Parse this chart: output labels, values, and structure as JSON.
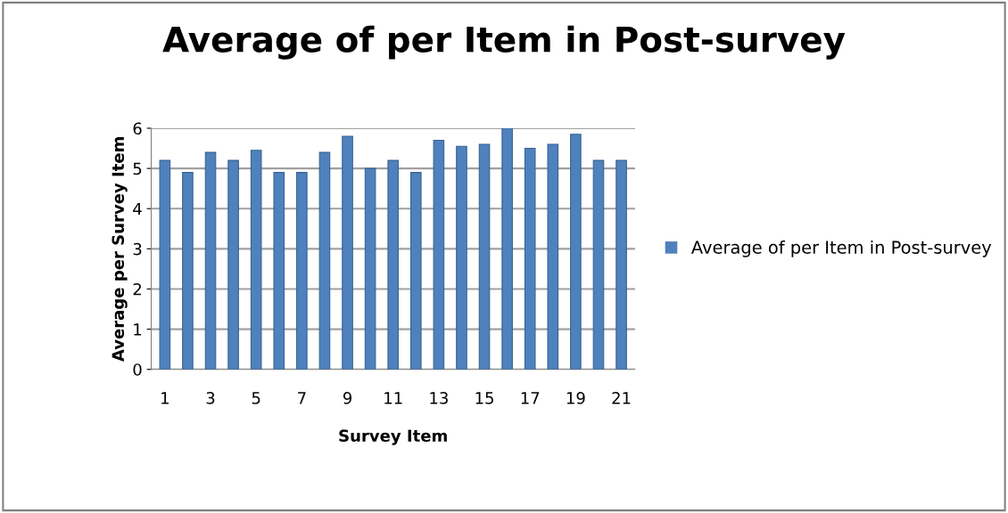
{
  "chart_data": {
    "type": "bar",
    "title": "Average of per Item in Post-survey",
    "xlabel": "Survey Item",
    "ylabel": "Average per Survey Item",
    "categories": [
      "1",
      null,
      "3",
      null,
      "5",
      null,
      "7",
      null,
      "9",
      null,
      "11",
      null,
      "13",
      null,
      "15",
      null,
      "17",
      null,
      "19",
      null,
      "21"
    ],
    "series": [
      {
        "name": "Average of per Item in Post-survey",
        "color": "#4f81bd",
        "values": [
          5.2,
          4.9,
          5.4,
          5.2,
          5.45,
          4.9,
          4.9,
          5.4,
          5.8,
          5.0,
          5.2,
          4.9,
          5.7,
          5.55,
          5.6,
          6.0,
          5.5,
          5.6,
          5.85,
          5.2,
          5.2
        ]
      }
    ],
    "ylim": [
      0,
      6
    ],
    "yticks": [
      0,
      1,
      2,
      3,
      4,
      5,
      6
    ],
    "grid": "y",
    "legend": "right"
  }
}
